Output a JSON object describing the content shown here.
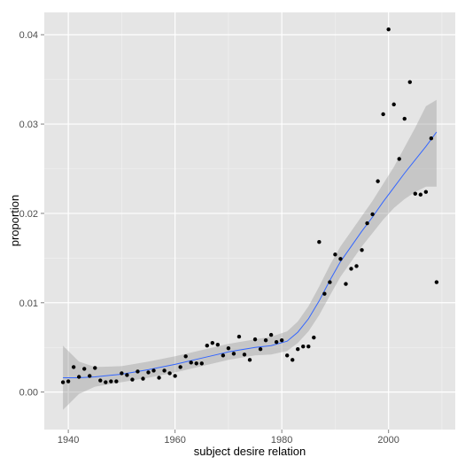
{
  "chart_data": {
    "type": "scatter",
    "title": "",
    "xlabel": "subject desire relation",
    "ylabel": "proportion",
    "xlim": [
      1935.5,
      2012.5
    ],
    "ylim": [
      -0.0042,
      0.0425
    ],
    "x_ticks": [
      1940,
      1960,
      1980,
      2000
    ],
    "y_ticks": [
      0.0,
      0.01,
      0.02,
      0.03,
      0.04
    ],
    "x_tick_labels": [
      "1940",
      "1960",
      "1980",
      "2000"
    ],
    "y_tick_labels": [
      "0.00",
      "0.01",
      "0.02",
      "0.03",
      "0.04"
    ],
    "grid": true,
    "colors": {
      "panel": "#e5e5e5",
      "grid_major": "#ffffff",
      "grid_minor": "#f2f2f2",
      "points": "#000000",
      "smooth_line": "#3366ff",
      "ribbon": "#999999"
    },
    "points": [
      {
        "x": 1939,
        "y": 0.0011
      },
      {
        "x": 1940,
        "y": 0.0012
      },
      {
        "x": 1941,
        "y": 0.0028
      },
      {
        "x": 1942,
        "y": 0.0017
      },
      {
        "x": 1943,
        "y": 0.0026
      },
      {
        "x": 1944,
        "y": 0.0018
      },
      {
        "x": 1945,
        "y": 0.0027
      },
      {
        "x": 1946,
        "y": 0.0013
      },
      {
        "x": 1947,
        "y": 0.0011
      },
      {
        "x": 1948,
        "y": 0.0012
      },
      {
        "x": 1949,
        "y": 0.0012
      },
      {
        "x": 1950,
        "y": 0.0021
      },
      {
        "x": 1951,
        "y": 0.0019
      },
      {
        "x": 1952,
        "y": 0.0014
      },
      {
        "x": 1953,
        "y": 0.0023
      },
      {
        "x": 1954,
        "y": 0.0015
      },
      {
        "x": 1955,
        "y": 0.0022
      },
      {
        "x": 1956,
        "y": 0.0024
      },
      {
        "x": 1957,
        "y": 0.0016
      },
      {
        "x": 1958,
        "y": 0.0024
      },
      {
        "x": 1959,
        "y": 0.0021
      },
      {
        "x": 1960,
        "y": 0.0018
      },
      {
        "x": 1961,
        "y": 0.0028
      },
      {
        "x": 1962,
        "y": 0.004
      },
      {
        "x": 1963,
        "y": 0.0033
      },
      {
        "x": 1964,
        "y": 0.0032
      },
      {
        "x": 1965,
        "y": 0.0032
      },
      {
        "x": 1966,
        "y": 0.0052
      },
      {
        "x": 1967,
        "y": 0.0055
      },
      {
        "x": 1968,
        "y": 0.0053
      },
      {
        "x": 1969,
        "y": 0.0041
      },
      {
        "x": 1970,
        "y": 0.0049
      },
      {
        "x": 1971,
        "y": 0.0043
      },
      {
        "x": 1972,
        "y": 0.0062
      },
      {
        "x": 1973,
        "y": 0.0042
      },
      {
        "x": 1974,
        "y": 0.0036
      },
      {
        "x": 1975,
        "y": 0.0059
      },
      {
        "x": 1976,
        "y": 0.0048
      },
      {
        "x": 1977,
        "y": 0.0058
      },
      {
        "x": 1978,
        "y": 0.0064
      },
      {
        "x": 1979,
        "y": 0.0056
      },
      {
        "x": 1980,
        "y": 0.0058
      },
      {
        "x": 1981,
        "y": 0.0041
      },
      {
        "x": 1982,
        "y": 0.0036
      },
      {
        "x": 1983,
        "y": 0.0048
      },
      {
        "x": 1984,
        "y": 0.0051
      },
      {
        "x": 1985,
        "y": 0.0051
      },
      {
        "x": 1986,
        "y": 0.0061
      },
      {
        "x": 1987,
        "y": 0.0168
      },
      {
        "x": 1988,
        "y": 0.011
      },
      {
        "x": 1989,
        "y": 0.0123
      },
      {
        "x": 1990,
        "y": 0.0154
      },
      {
        "x": 1991,
        "y": 0.0149
      },
      {
        "x": 1992,
        "y": 0.0121
      },
      {
        "x": 1993,
        "y": 0.0138
      },
      {
        "x": 1994,
        "y": 0.0141
      },
      {
        "x": 1995,
        "y": 0.0159
      },
      {
        "x": 1996,
        "y": 0.0189
      },
      {
        "x": 1997,
        "y": 0.0199
      },
      {
        "x": 1998,
        "y": 0.0236
      },
      {
        "x": 1999,
        "y": 0.0311
      },
      {
        "x": 2000,
        "y": 0.0406
      },
      {
        "x": 2001,
        "y": 0.0322
      },
      {
        "x": 2002,
        "y": 0.0261
      },
      {
        "x": 2003,
        "y": 0.0306
      },
      {
        "x": 2004,
        "y": 0.0347
      },
      {
        "x": 2005,
        "y": 0.0222
      },
      {
        "x": 2006,
        "y": 0.0221
      },
      {
        "x": 2007,
        "y": 0.0224
      },
      {
        "x": 2008,
        "y": 0.0284
      },
      {
        "x": 2009,
        "y": 0.0123
      }
    ],
    "smooth": [
      {
        "x": 1939,
        "y": 0.0016,
        "lo": -0.002,
        "hi": 0.0052
      },
      {
        "x": 1942,
        "y": 0.0016,
        "lo": -0.0002,
        "hi": 0.0034
      },
      {
        "x": 1945,
        "y": 0.0017,
        "lo": 0.0006,
        "hi": 0.0028
      },
      {
        "x": 1950,
        "y": 0.002,
        "lo": 0.0011,
        "hi": 0.0029
      },
      {
        "x": 1955,
        "y": 0.0025,
        "lo": 0.0016,
        "hi": 0.0034
      },
      {
        "x": 1960,
        "y": 0.0031,
        "lo": 0.0022,
        "hi": 0.004
      },
      {
        "x": 1965,
        "y": 0.0038,
        "lo": 0.0029,
        "hi": 0.0047
      },
      {
        "x": 1970,
        "y": 0.0045,
        "lo": 0.0036,
        "hi": 0.0054
      },
      {
        "x": 1975,
        "y": 0.005,
        "lo": 0.0041,
        "hi": 0.0059
      },
      {
        "x": 1978,
        "y": 0.0052,
        "lo": 0.0042,
        "hi": 0.0062
      },
      {
        "x": 1981,
        "y": 0.0057,
        "lo": 0.0046,
        "hi": 0.0068
      },
      {
        "x": 1983,
        "y": 0.0067,
        "lo": 0.0055,
        "hi": 0.0079
      },
      {
        "x": 1985,
        "y": 0.0082,
        "lo": 0.0068,
        "hi": 0.0096
      },
      {
        "x": 1987,
        "y": 0.0102,
        "lo": 0.0086,
        "hi": 0.0118
      },
      {
        "x": 1989,
        "y": 0.0125,
        "lo": 0.0108,
        "hi": 0.0142
      },
      {
        "x": 1991,
        "y": 0.0146,
        "lo": 0.0129,
        "hi": 0.0163
      },
      {
        "x": 1993,
        "y": 0.0163,
        "lo": 0.0146,
        "hi": 0.018
      },
      {
        "x": 1995,
        "y": 0.018,
        "lo": 0.0163,
        "hi": 0.0197
      },
      {
        "x": 1997,
        "y": 0.0196,
        "lo": 0.0178,
        "hi": 0.0214
      },
      {
        "x": 1999,
        "y": 0.0213,
        "lo": 0.0193,
        "hi": 0.0233
      },
      {
        "x": 2001,
        "y": 0.0229,
        "lo": 0.0206,
        "hi": 0.0252
      },
      {
        "x": 2003,
        "y": 0.0245,
        "lo": 0.0216,
        "hi": 0.0274
      },
      {
        "x": 2005,
        "y": 0.026,
        "lo": 0.0224,
        "hi": 0.0296
      },
      {
        "x": 2007,
        "y": 0.0275,
        "lo": 0.023,
        "hi": 0.032
      },
      {
        "x": 2009,
        "y": 0.0291,
        "lo": 0.023,
        "hi": 0.0327
      }
    ]
  }
}
